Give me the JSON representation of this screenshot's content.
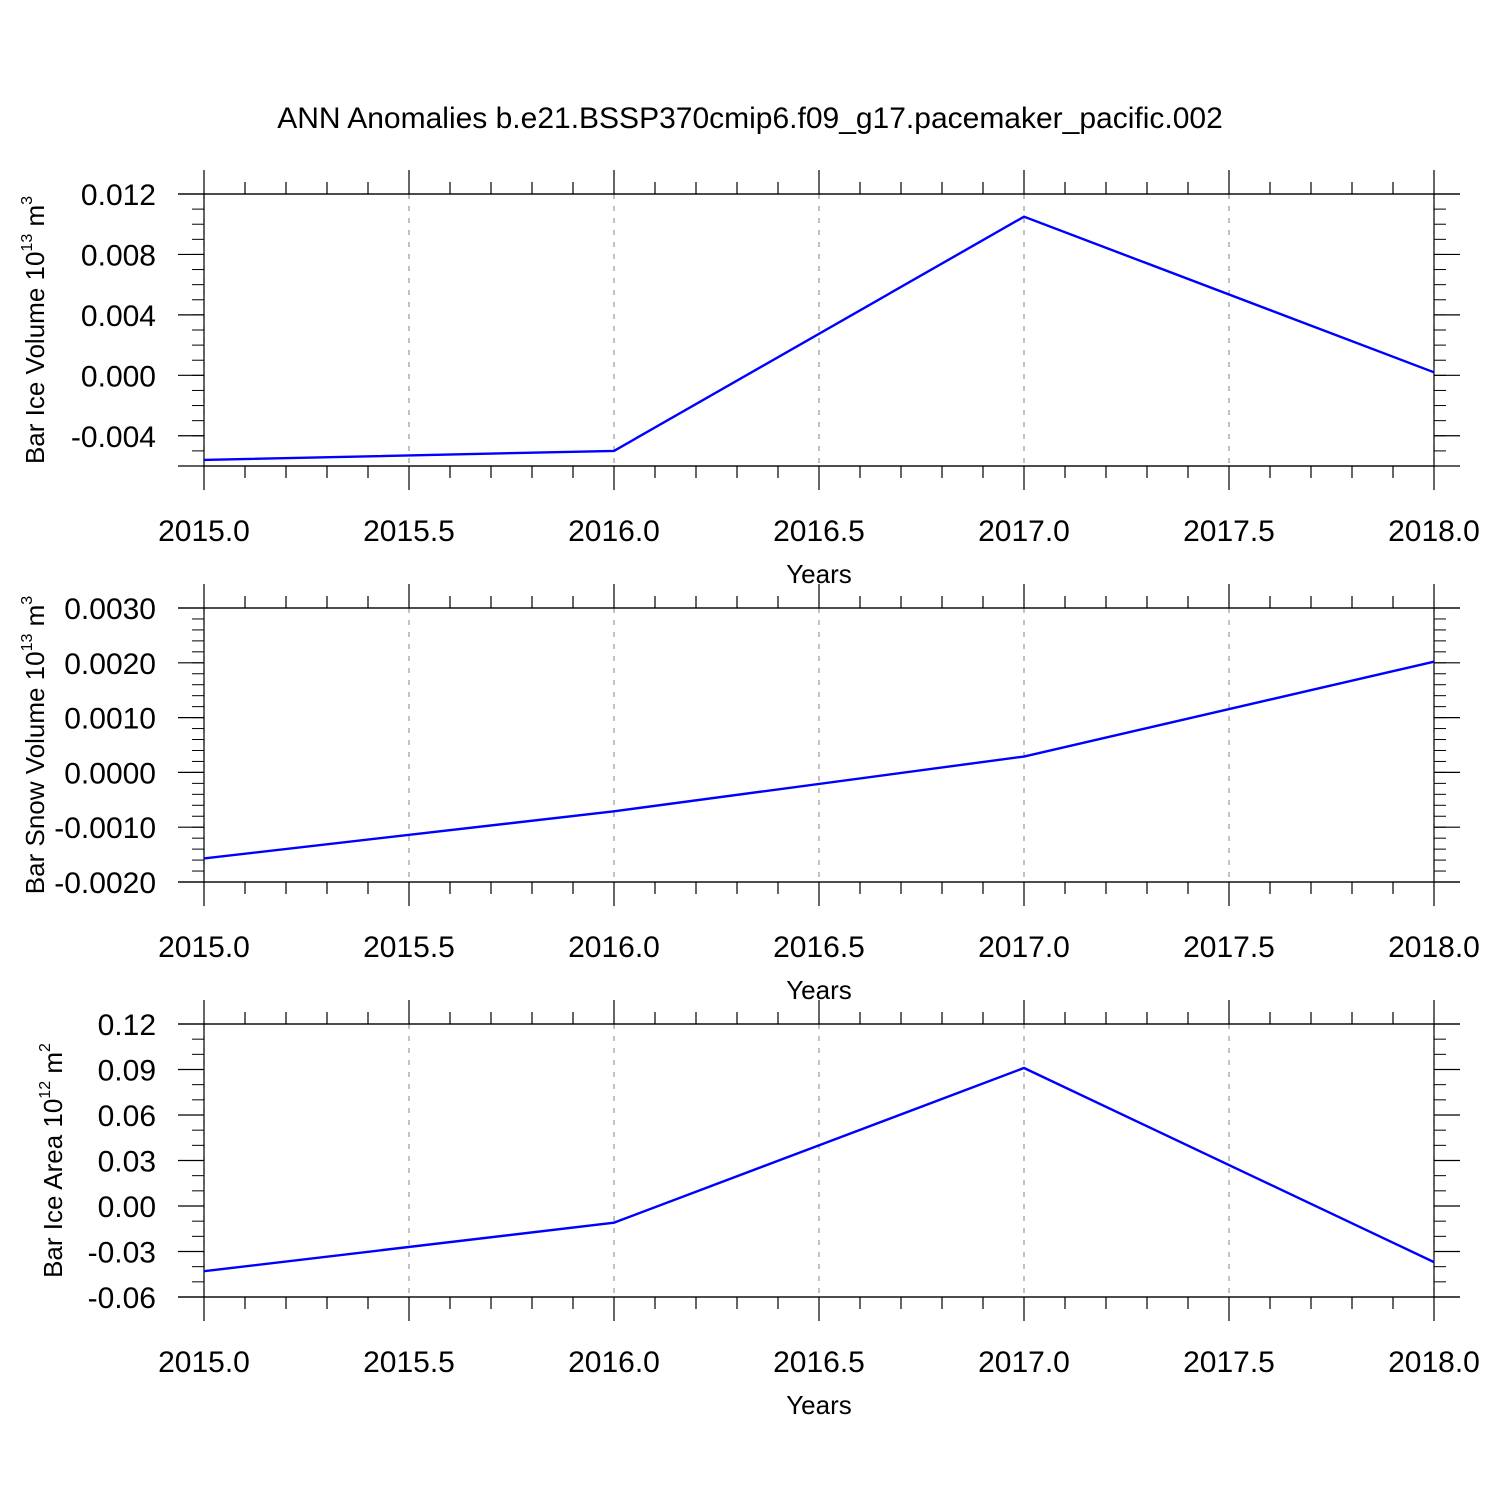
{
  "figure": {
    "title": "ANN Anomalies b.e21.BSSP370cmip6.f09_g17.pacemaker_pacific.002",
    "line_color": "#0000ff",
    "grid_color": "#999999"
  },
  "chart_data": [
    {
      "type": "line",
      "title": "",
      "xlabel": "Years",
      "ylabel": "Bar Ice Volume 10",
      "ylabel_exponent": "13",
      "ylabel_unit": "m",
      "ylabel_unit_exponent": "3",
      "x": [
        2015.0,
        2016.0,
        2017.0,
        2018.0
      ],
      "series": [
        {
          "values": [
            -0.0056,
            -0.005,
            0.0105,
            0.0002
          ]
        }
      ],
      "xlim": [
        2015.0,
        2018.0
      ],
      "ylim": [
        -0.006,
        0.012
      ],
      "xticks": [
        "2015.0",
        "2015.5",
        "2016.0",
        "2016.5",
        "2017.0",
        "2017.5",
        "2018.0"
      ],
      "yticks": [
        "0.012",
        "0.008",
        "0.004",
        "0.000",
        "-0.004"
      ],
      "ytick_values": [
        0.012,
        0.008,
        0.004,
        0.0,
        -0.004
      ],
      "ytick_minor_step": 0.001,
      "grid": "vertical dashed"
    },
    {
      "type": "line",
      "title": "",
      "xlabel": "Years",
      "ylabel": "Bar Snow Volume 10",
      "ylabel_exponent": "13",
      "ylabel_unit": "m",
      "ylabel_unit_exponent": "3",
      "x": [
        2015.0,
        2016.0,
        2017.0,
        2018.0
      ],
      "series": [
        {
          "values": [
            -0.00157,
            -0.00071,
            0.00029,
            0.00202
          ]
        }
      ],
      "xlim": [
        2015.0,
        2018.0
      ],
      "ylim": [
        -0.002,
        0.003
      ],
      "xticks": [
        "2015.0",
        "2015.5",
        "2016.0",
        "2016.5",
        "2017.0",
        "2017.5",
        "2018.0"
      ],
      "yticks": [
        "0.0030",
        "0.0020",
        "0.0010",
        "0.0000",
        "-0.0010",
        "-0.0020"
      ],
      "ytick_values": [
        0.003,
        0.002,
        0.001,
        0.0,
        -0.001,
        -0.002
      ],
      "ytick_minor_step": 0.0002,
      "grid": "vertical dashed"
    },
    {
      "type": "line",
      "title": "",
      "xlabel": "Years",
      "ylabel": "Bar Ice Area 10",
      "ylabel_exponent": "12",
      "ylabel_unit": "m",
      "ylabel_unit_exponent": "2",
      "x": [
        2015.0,
        2016.0,
        2017.0,
        2018.0
      ],
      "series": [
        {
          "values": [
            -0.043,
            -0.011,
            0.091,
            -0.037
          ]
        }
      ],
      "xlim": [
        2015.0,
        2018.0
      ],
      "ylim": [
        -0.06,
        0.12
      ],
      "xticks": [
        "2015.0",
        "2015.5",
        "2016.0",
        "2016.5",
        "2017.0",
        "2017.5",
        "2018.0"
      ],
      "yticks": [
        "0.12",
        "0.09",
        "0.06",
        "0.03",
        "0.00",
        "-0.03",
        "-0.06"
      ],
      "ytick_values": [
        0.12,
        0.09,
        0.06,
        0.03,
        0.0,
        -0.03,
        -0.06
      ],
      "ytick_minor_step": 0.01,
      "grid": "vertical dashed"
    }
  ]
}
